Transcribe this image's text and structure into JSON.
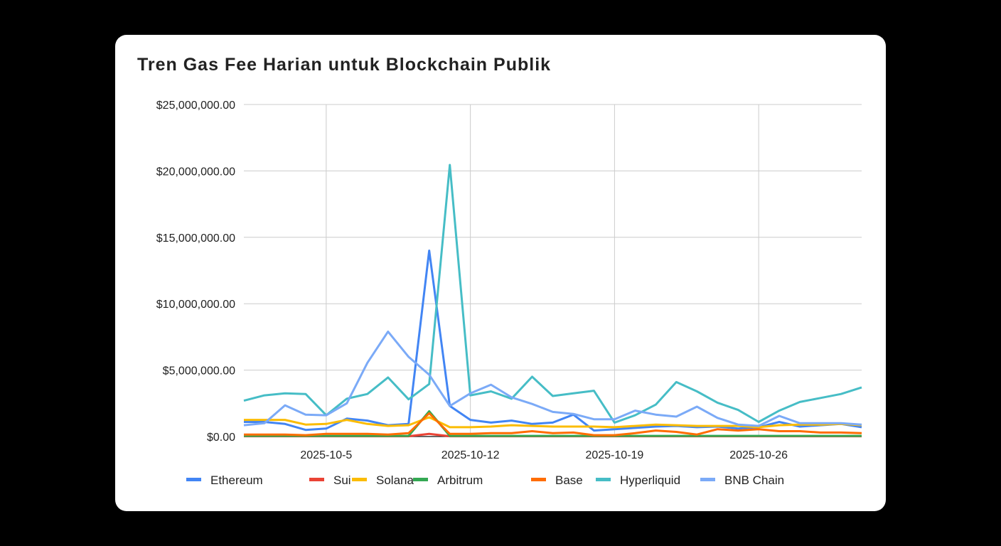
{
  "chart_data": {
    "type": "line",
    "title": "Tren Gas Fee Harian untuk Blockchain Publik",
    "xlabel": "",
    "ylabel": "",
    "x_start": "2025-10-01",
    "x_end": "2025-10-31",
    "x_ticks": [
      "2025-10-5",
      "2025-10-12",
      "2025-10-19",
      "2025-10-26"
    ],
    "y_ticks": [
      "$0.00",
      "$5,000,000.00",
      "$10,000,000.00",
      "$15,000,000.00",
      "$20,000,000.00",
      "$25,000,000.00"
    ],
    "ylim": [
      0,
      25000000
    ],
    "grid": true,
    "legend": "bottom",
    "series": [
      {
        "name": "Ethereum",
        "color": "#4285f4",
        "values": [
          1.1,
          1.1,
          0.95,
          0.5,
          0.6,
          1.35,
          1.2,
          0.85,
          0.95,
          14.0,
          2.3,
          1.25,
          1.05,
          1.2,
          0.95,
          1.05,
          1.65,
          0.45,
          0.55,
          0.65,
          0.75,
          0.8,
          0.7,
          0.75,
          0.6,
          0.7,
          1.1,
          0.75,
          0.85,
          0.95,
          0.7
        ]
      },
      {
        "name": "Sui",
        "color": "#ea4335",
        "values": [
          0.02,
          0.02,
          0.02,
          0.02,
          0.02,
          0.02,
          0.02,
          0.02,
          0.02,
          0.2,
          0.02,
          0.02,
          0.02,
          0.02,
          0.02,
          0.02,
          0.02,
          0.02,
          0.02,
          0.02,
          0.02,
          0.02,
          0.02,
          0.02,
          0.02,
          0.02,
          0.02,
          0.02,
          0.02,
          0.02,
          0.02
        ]
      },
      {
        "name": "Solana",
        "color": "#fbbc04",
        "values": [
          1.25,
          1.25,
          1.25,
          0.9,
          0.95,
          1.25,
          0.95,
          0.8,
          0.85,
          1.45,
          0.7,
          0.7,
          0.75,
          0.85,
          0.8,
          0.75,
          0.75,
          0.75,
          0.7,
          0.8,
          0.9,
          0.85,
          0.8,
          0.8,
          0.8,
          0.7,
          0.85,
          0.9,
          0.9,
          0.95,
          0.85
        ]
      },
      {
        "name": "Arbitrum",
        "color": "#34a853",
        "values": [
          0.05,
          0.05,
          0.05,
          0.05,
          0.05,
          0.05,
          0.05,
          0.05,
          0.05,
          1.9,
          0.05,
          0.05,
          0.05,
          0.05,
          0.05,
          0.05,
          0.05,
          0.05,
          0.05,
          0.05,
          0.05,
          0.05,
          0.05,
          0.05,
          0.05,
          0.05,
          0.05,
          0.05,
          0.05,
          0.05,
          0.05
        ]
      },
      {
        "name": "Base",
        "color": "#ff6d01",
        "values": [
          0.15,
          0.15,
          0.15,
          0.1,
          0.2,
          0.2,
          0.2,
          0.15,
          0.25,
          1.75,
          0.2,
          0.2,
          0.25,
          0.25,
          0.4,
          0.25,
          0.3,
          0.1,
          0.1,
          0.25,
          0.45,
          0.35,
          0.15,
          0.55,
          0.45,
          0.55,
          0.4,
          0.4,
          0.3,
          0.3,
          0.25
        ]
      },
      {
        "name": "Hyperliquid",
        "color": "#46bdc6",
        "values": [
          2.7,
          3.1,
          3.25,
          3.2,
          1.6,
          2.85,
          3.2,
          4.45,
          2.8,
          3.95,
          20.45,
          3.1,
          3.4,
          2.85,
          4.5,
          3.05,
          3.25,
          3.45,
          1.05,
          1.6,
          2.4,
          4.1,
          3.4,
          2.55,
          2.0,
          1.1,
          1.95,
          2.6,
          2.9,
          3.2,
          3.7
        ]
      },
      {
        "name": "BNB Chain",
        "color": "#7baaf7",
        "values": [
          0.85,
          1.0,
          2.35,
          1.65,
          1.6,
          2.5,
          5.55,
          7.9,
          6.0,
          4.65,
          2.3,
          3.25,
          3.9,
          2.95,
          2.45,
          1.85,
          1.7,
          1.3,
          1.3,
          1.95,
          1.65,
          1.5,
          2.25,
          1.4,
          0.9,
          0.8,
          1.55,
          1.0,
          1.0,
          1.0,
          0.9
        ]
      }
    ],
    "values_unit": "millions USD"
  }
}
